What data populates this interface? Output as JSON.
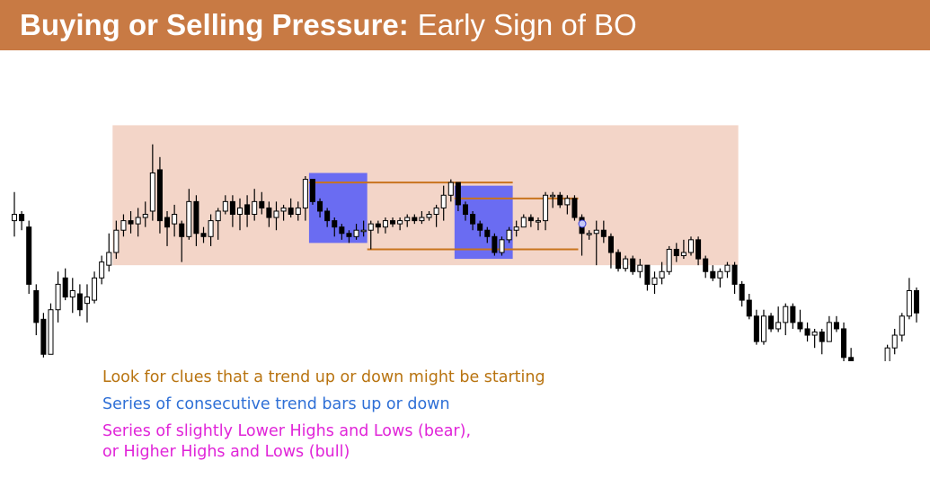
{
  "title": {
    "bold": "Buying or Selling Pressure:",
    "normal": "Early Sign of BO"
  },
  "notes": [
    {
      "text": "Look for clues that a trend up or down might be starting",
      "color": "#b8730f"
    },
    {
      "text": "Series of consecutive trend bars up or down",
      "color": "#2e6fd6"
    },
    {
      "text_lines": [
        "Series of slightly Lower Highs and Lows (bear),",
        "or Higher Highs and Lows (bull)"
      ],
      "color": "#e024d8"
    }
  ],
  "colors": {
    "range_box": "#f3d5c8",
    "trend_highlight": "#6a6cf2",
    "level_line": "#c8741e",
    "bear_body": "#000000",
    "bull_body": "#ffffff",
    "wick": "#000000"
  },
  "chart_data": {
    "type": "candlestick",
    "ylim": [
      0,
      100
    ],
    "range_box": {
      "start": 14,
      "end": 99,
      "low": 46,
      "high": 90
    },
    "highlights": [
      {
        "start": 41,
        "end": 48,
        "low": 53,
        "high": 75
      },
      {
        "start": 61,
        "end": 68,
        "low": 48,
        "high": 71
      }
    ],
    "levels": [
      {
        "start": 41,
        "end": 68,
        "value": 72
      },
      {
        "start": 61,
        "end": 77,
        "value": 67
      },
      {
        "start": 49,
        "end": 77,
        "value": 51
      }
    ],
    "candles": [
      [
        60,
        62,
        69,
        55
      ],
      [
        62,
        60,
        63,
        57
      ],
      [
        58,
        40,
        60,
        37
      ],
      [
        38,
        28,
        40,
        24
      ],
      [
        29,
        18,
        31,
        17
      ],
      [
        18,
        32,
        34,
        18
      ],
      [
        32,
        40,
        44,
        28
      ],
      [
        42,
        36,
        45,
        35
      ],
      [
        36,
        38,
        42,
        31
      ],
      [
        37,
        32,
        40,
        30
      ],
      [
        34,
        36,
        40,
        28
      ],
      [
        35,
        42,
        44,
        34
      ],
      [
        42,
        47,
        49,
        40
      ],
      [
        46,
        50,
        56,
        44
      ],
      [
        50,
        57,
        60,
        48
      ],
      [
        57,
        60,
        62,
        55
      ],
      [
        60,
        59,
        63,
        56
      ],
      [
        59,
        61,
        64,
        55
      ],
      [
        61,
        62,
        66,
        58
      ],
      [
        63,
        75,
        84,
        60
      ],
      [
        76,
        60,
        80,
        56
      ],
      [
        61,
        58,
        63,
        52
      ],
      [
        59,
        62,
        65,
        55
      ],
      [
        59,
        55,
        60,
        47
      ],
      [
        55,
        66,
        70,
        54
      ],
      [
        66,
        56,
        68,
        52
      ],
      [
        56,
        55,
        58,
        53
      ],
      [
        55,
        60,
        62,
        52
      ],
      [
        60,
        63,
        64,
        54
      ],
      [
        63,
        66,
        68,
        62
      ],
      [
        66,
        62,
        68,
        58
      ],
      [
        62,
        64,
        67,
        57
      ],
      [
        65,
        62,
        68,
        58
      ],
      [
        62,
        66,
        70,
        60
      ],
      [
        66,
        64,
        69,
        62
      ],
      [
        64,
        61,
        66,
        58
      ],
      [
        61,
        63,
        66,
        57
      ],
      [
        63,
        64,
        65,
        60
      ],
      [
        64,
        62,
        67,
        61
      ],
      [
        62,
        64,
        66,
        60
      ],
      [
        64,
        73,
        74,
        60
      ],
      [
        73,
        66,
        73,
        65
      ],
      [
        66,
        63,
        67,
        61
      ],
      [
        63,
        60,
        64,
        58
      ],
      [
        60,
        58,
        61,
        55
      ],
      [
        58,
        56,
        59,
        54
      ],
      [
        56,
        55,
        57,
        53
      ],
      [
        55,
        57,
        59,
        54
      ],
      [
        57,
        57,
        60,
        55
      ],
      [
        57,
        59,
        60,
        51
      ],
      [
        59,
        58,
        60,
        56
      ],
      [
        58,
        60,
        61,
        56
      ],
      [
        60,
        59,
        61,
        58
      ],
      [
        59,
        60,
        61,
        57
      ],
      [
        60,
        61,
        62,
        58
      ],
      [
        61,
        60,
        62,
        59
      ],
      [
        60,
        61,
        63,
        59
      ],
      [
        61,
        62,
        63,
        60
      ],
      [
        62,
        64,
        65,
        58
      ],
      [
        64,
        68,
        71,
        60
      ],
      [
        68,
        72,
        73,
        66
      ],
      [
        72,
        65,
        72,
        63
      ],
      [
        65,
        62,
        66,
        60
      ],
      [
        62,
        59,
        63,
        57
      ],
      [
        59,
        57,
        60,
        55
      ],
      [
        57,
        55,
        58,
        53
      ],
      [
        55,
        50,
        56,
        49
      ],
      [
        50,
        54,
        55,
        49
      ],
      [
        54,
        57,
        58,
        53
      ],
      [
        57,
        58,
        60,
        55
      ],
      [
        58,
        61,
        62,
        58
      ],
      [
        61,
        60,
        62,
        58
      ],
      [
        60,
        60,
        61,
        57
      ],
      [
        60,
        68,
        69,
        57
      ],
      [
        68,
        68,
        69,
        64
      ],
      [
        68,
        65,
        69,
        64
      ],
      [
        65,
        67,
        68,
        62
      ],
      [
        67,
        61,
        68,
        60
      ],
      [
        61,
        56,
        62,
        49
      ],
      [
        56,
        56,
        57,
        54
      ],
      [
        56,
        57,
        60,
        46
      ],
      [
        57,
        55,
        60,
        53
      ],
      [
        55,
        50,
        56,
        45
      ],
      [
        50,
        45,
        51,
        44
      ],
      [
        45,
        48,
        49,
        44
      ],
      [
        48,
        44,
        49,
        43
      ],
      [
        44,
        46,
        48,
        42
      ],
      [
        46,
        40,
        46,
        38
      ],
      [
        40,
        42,
        44,
        37
      ],
      [
        42,
        44,
        47,
        40
      ],
      [
        44,
        51,
        52,
        43
      ],
      [
        51,
        49,
        53,
        47
      ],
      [
        49,
        50,
        54,
        48
      ],
      [
        50,
        54,
        55,
        49
      ],
      [
        54,
        48,
        55,
        46
      ],
      [
        48,
        44,
        49,
        42
      ],
      [
        44,
        42,
        46,
        41
      ],
      [
        42,
        44,
        45,
        39
      ],
      [
        44,
        46,
        47,
        42
      ],
      [
        46,
        40,
        47,
        37
      ],
      [
        40,
        35,
        41,
        33
      ],
      [
        35,
        30,
        37,
        29
      ],
      [
        30,
        22,
        32,
        21
      ],
      [
        22,
        30,
        32,
        21
      ],
      [
        30,
        26,
        31,
        25
      ],
      [
        26,
        28,
        33,
        25
      ],
      [
        28,
        33,
        34,
        24
      ],
      [
        33,
        28,
        34,
        26
      ],
      [
        28,
        26,
        32,
        25
      ],
      [
        26,
        24,
        28,
        22
      ],
      [
        24,
        25,
        26,
        20
      ],
      [
        25,
        22,
        26,
        18
      ],
      [
        22,
        28,
        30,
        22
      ],
      [
        28,
        26,
        30,
        25
      ],
      [
        26,
        17,
        28,
        13
      ],
      [
        17,
        10,
        20,
        5
      ],
      [
        10,
        5,
        11,
        2
      ],
      [
        5,
        9,
        11,
        3
      ],
      [
        9,
        2,
        10,
        0
      ],
      [
        2,
        7,
        9,
        1
      ],
      [
        7,
        20,
        21,
        7
      ],
      [
        20,
        24,
        26,
        18
      ],
      [
        24,
        30,
        31,
        22
      ],
      [
        30,
        38,
        42,
        29
      ],
      [
        38,
        31,
        39,
        28
      ]
    ]
  }
}
